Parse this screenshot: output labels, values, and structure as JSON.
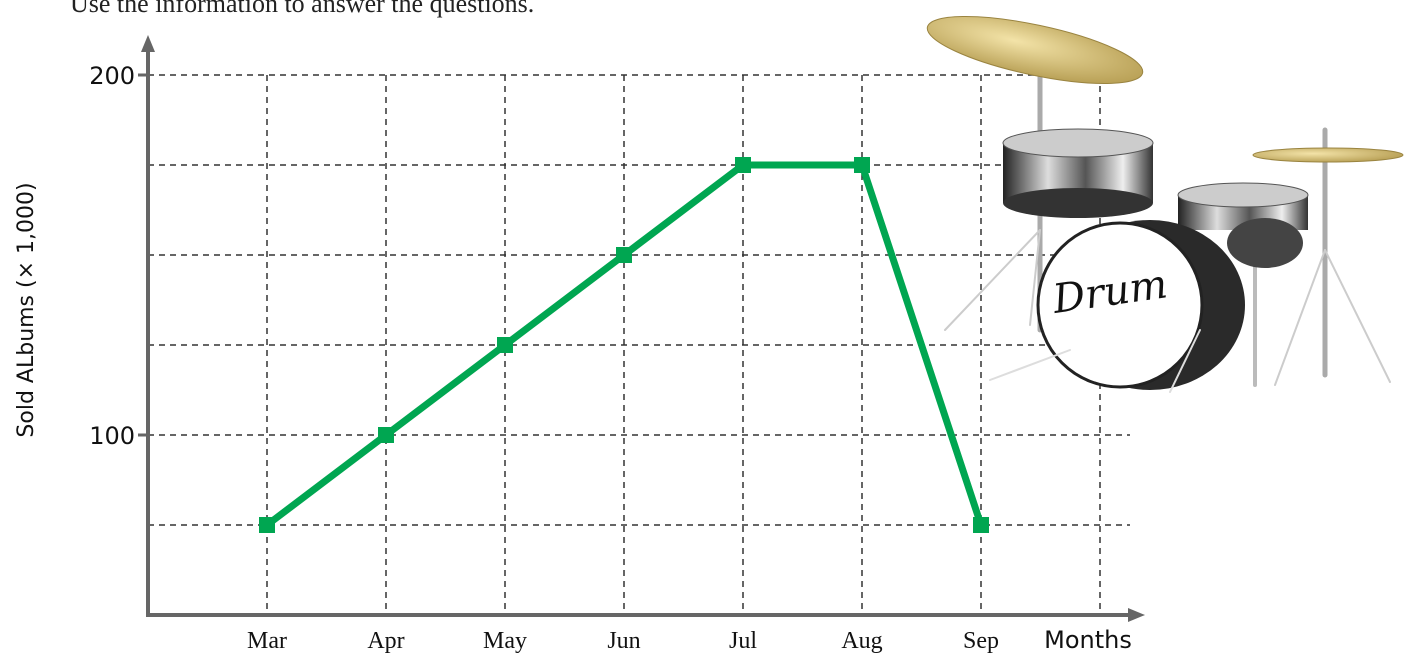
{
  "instruction": "Use the information to answer the questions.",
  "chart_data": {
    "type": "line",
    "y_label": "Sold ALbums (× 1,000)",
    "x_label": "Months",
    "categories": [
      "Mar",
      "Apr",
      "May",
      "Jun",
      "Jul",
      "Aug",
      "Sep",
      null
    ],
    "series": [
      {
        "name": null,
        "color": "#00a651",
        "values": [
          75,
          100,
          125,
          150,
          175,
          175,
          75,
          null
        ]
      }
    ],
    "ylim": [
      50,
      200
    ],
    "yticks": [
      100,
      200
    ],
    "ygrid": [
      75,
      100,
      125,
      150,
      175,
      200
    ],
    "grid": true
  },
  "drum_label": "Drum"
}
